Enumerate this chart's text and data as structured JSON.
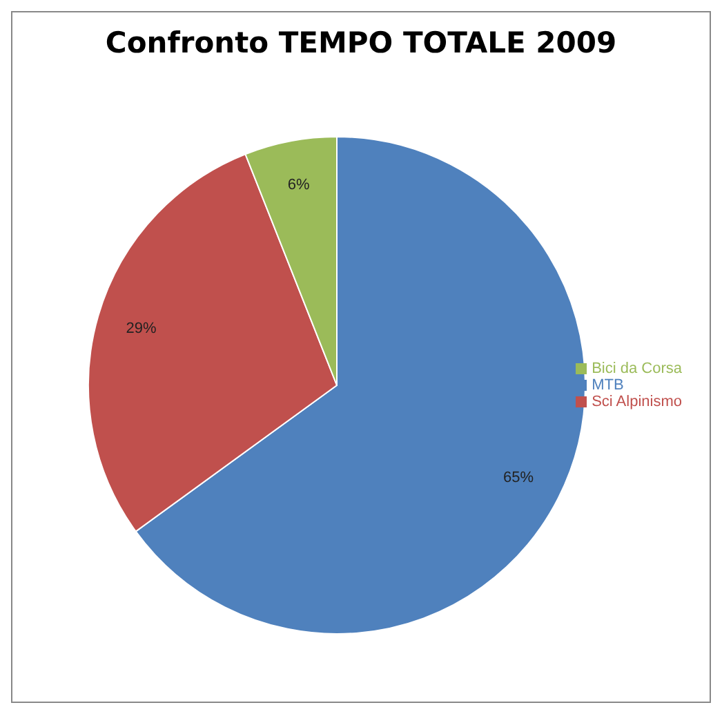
{
  "chart_data": {
    "type": "pie",
    "title": "Confronto TEMPO TOTALE 2009",
    "categories": [
      "MTB",
      "Sci Alpinismo",
      "Bici da Corsa"
    ],
    "values": [
      65,
      29,
      6
    ],
    "colors": [
      "#4f81bd",
      "#c0504d",
      "#9bbb59"
    ],
    "value_labels": [
      "65%",
      "29%",
      "6%"
    ],
    "legend": "right"
  }
}
